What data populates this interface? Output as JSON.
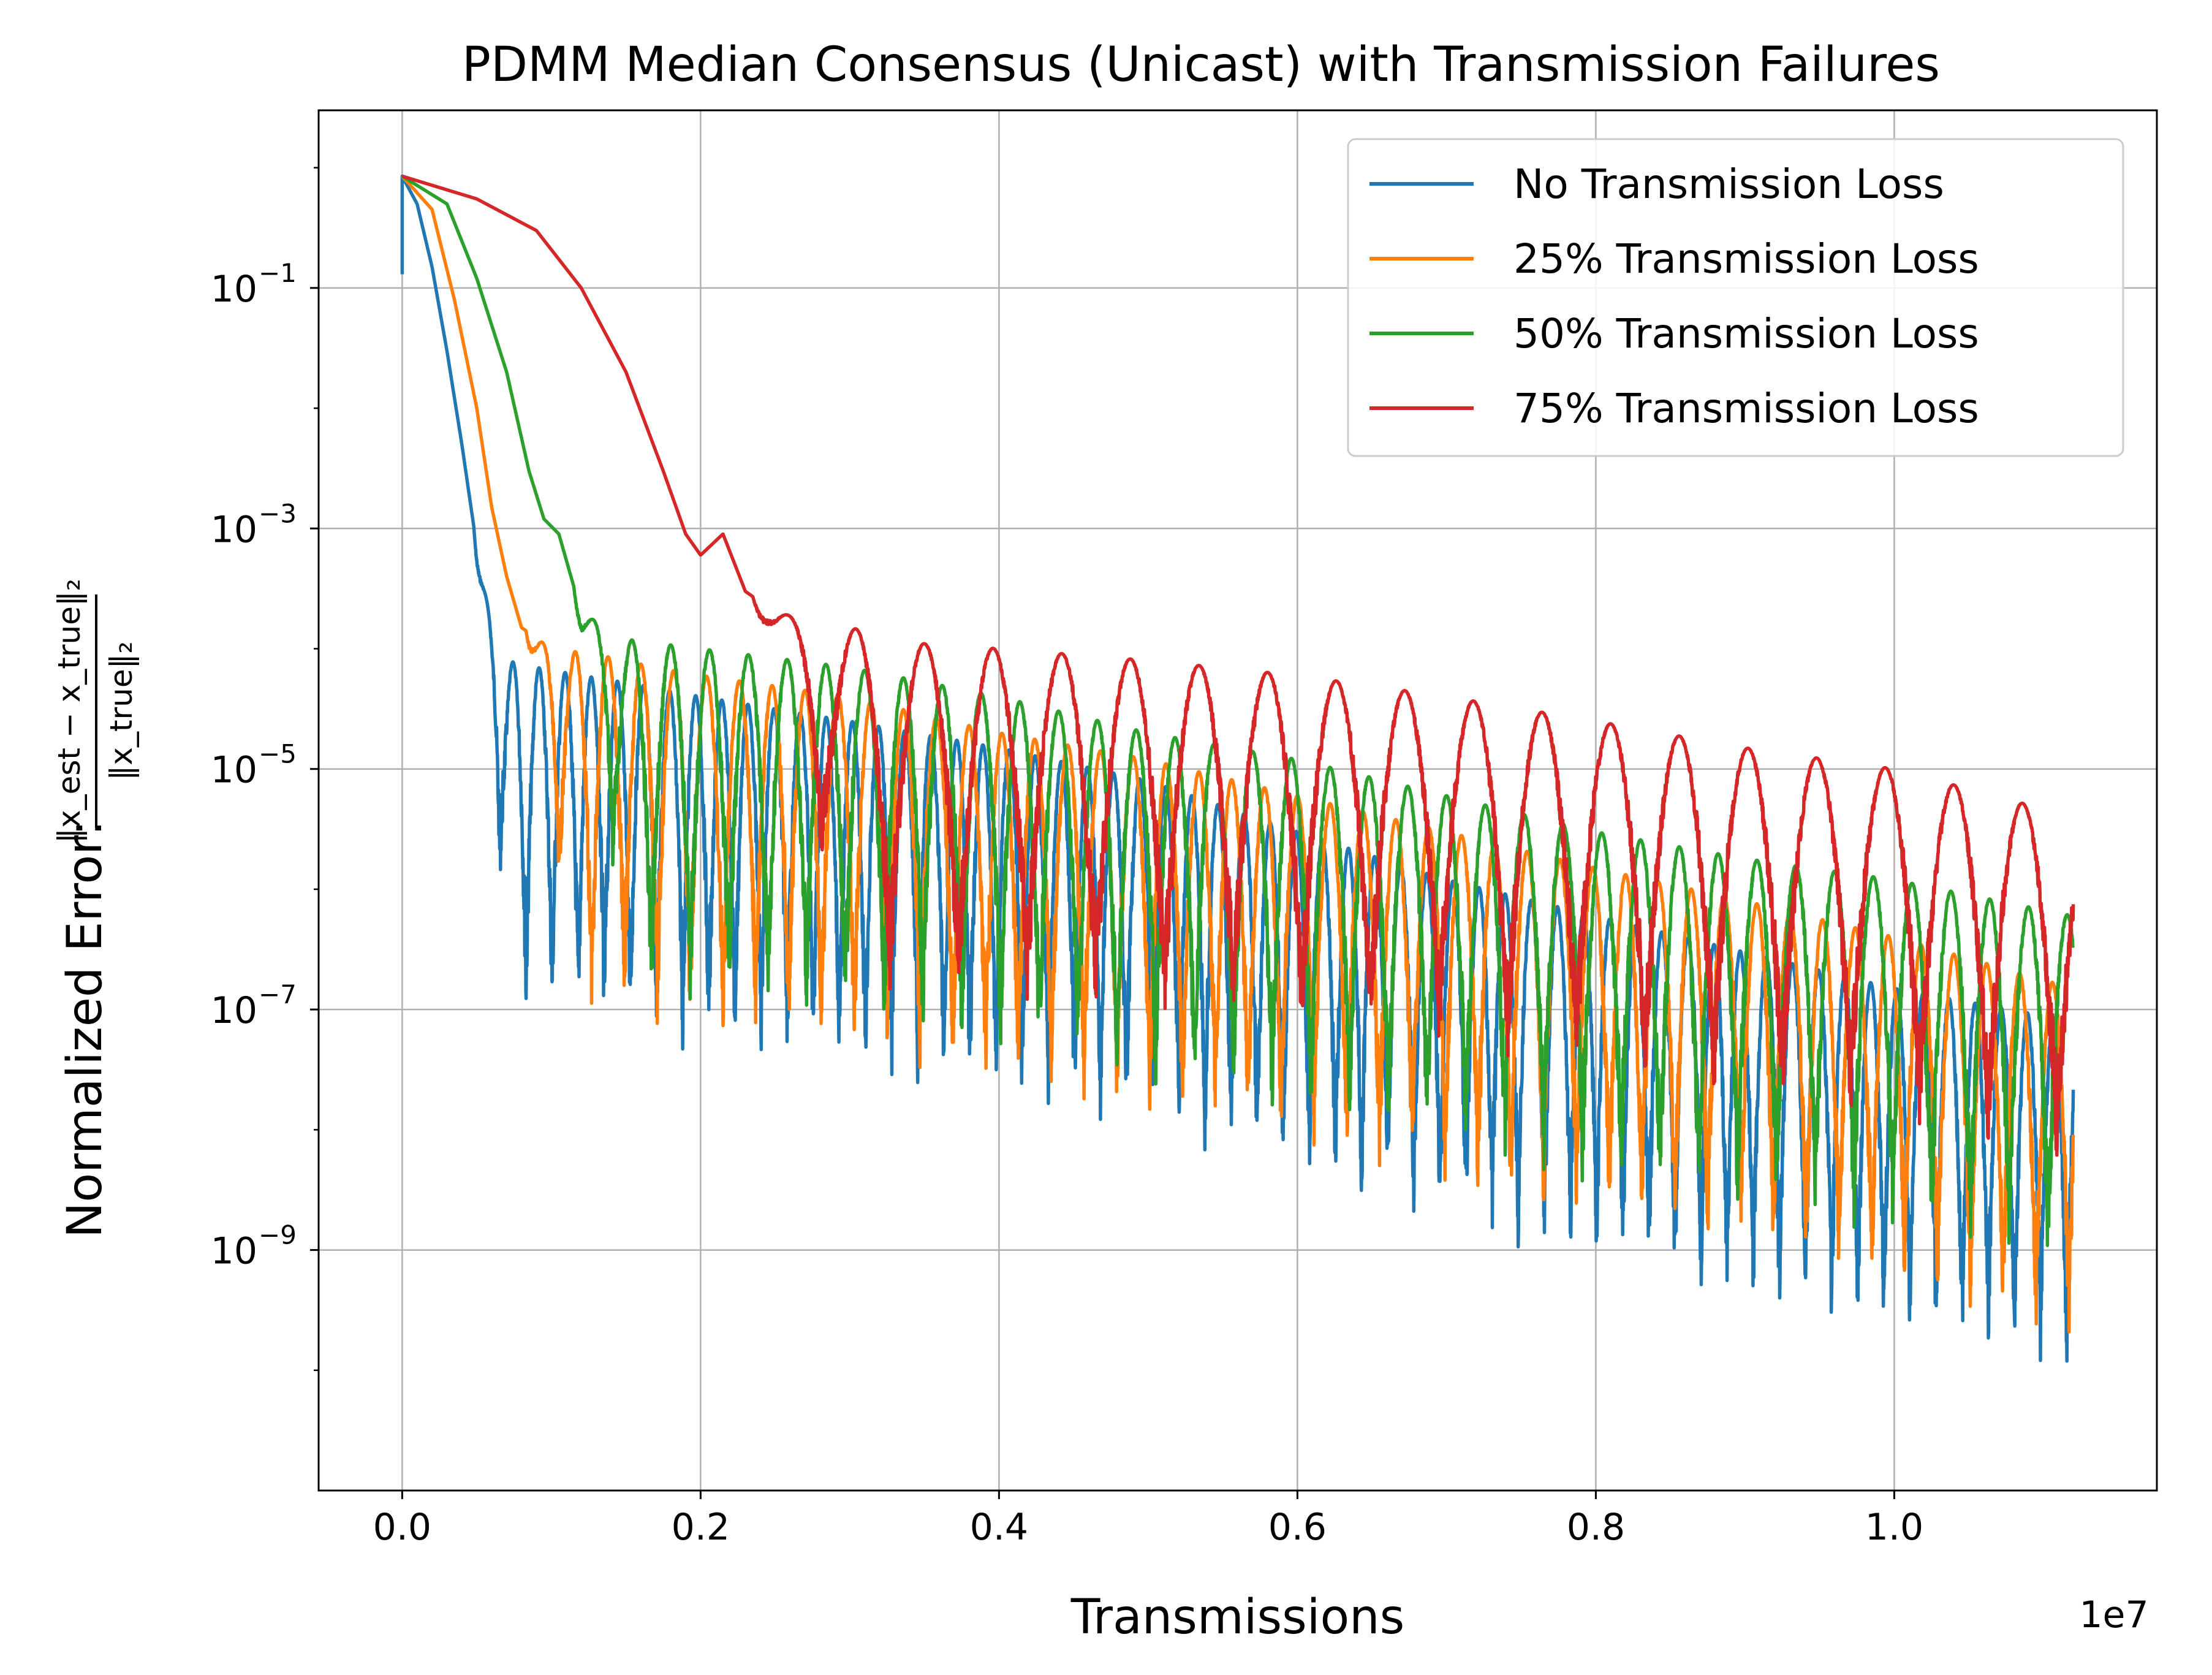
{
  "chart_data": {
    "type": "line",
    "title": "PDMM Median Consensus (Unicast) with Transmission Failures",
    "xlabel": "Transmissions",
    "x_offset_label": "1e7",
    "ylabel": {
      "prefix": "Normalized Error:",
      "numerator": "‖x_est − x_true‖₂",
      "denominator": "‖x_true‖₂"
    },
    "y_scale": "log",
    "xlim": [
      -560000,
      11760000
    ],
    "ylim": [
      1e-11,
      3.0
    ],
    "x_ticks": [
      0,
      2000000,
      4000000,
      6000000,
      8000000,
      10000000
    ],
    "x_tick_labels": [
      "0.0",
      "0.2",
      "0.4",
      "0.6",
      "0.8",
      "1.0"
    ],
    "y_ticks": [
      1e-09,
      1e-07,
      1e-05,
      0.001,
      0.1
    ],
    "y_tick_labels": [
      {
        "base": "10",
        "exp": "−9"
      },
      {
        "base": "10",
        "exp": "−7"
      },
      {
        "base": "10",
        "exp": "−5"
      },
      {
        "base": "10",
        "exp": "−3"
      },
      {
        "base": "10",
        "exp": "−1"
      }
    ],
    "grid": true,
    "legend_position": "top-right",
    "series": [
      {
        "name": "No Transmission Loss",
        "color": "#1f77b4",
        "start": 0.13,
        "peak": 0.85,
        "decay_x": [
          0,
          100000,
          200000,
          300000,
          400000,
          500000,
          600000,
          700000,
          900000,
          1200000,
          1600000,
          2000000,
          3000000,
          4000000,
          5000000,
          6000000,
          7000000,
          8000000,
          9000000,
          10000000,
          11200000
        ],
        "decay_y": [
          0.85,
          0.5,
          0.15,
          0.03,
          0.005,
          0.0007,
          0.00015,
          8e-05,
          7e-05,
          6e-05,
          5e-05,
          4e-05,
          2.5e-05,
          1.5e-05,
          8e-06,
          3e-06,
          1.2e-06,
          6e-07,
          3e-07,
          1.5e-07,
          8e-08
        ],
        "oscillation_period": 175000,
        "oscillation_start": 480000,
        "notch_min": [
          2e-07,
          3e-09
        ]
      },
      {
        "name": "25% Transmission Loss",
        "color": "#ff7f0e",
        "start": 0.85,
        "peak": 0.85,
        "decay_x": [
          0,
          200000,
          350000,
          500000,
          600000,
          700000,
          800000,
          1000000,
          1300000,
          1700000,
          2000000,
          3000000,
          4000000,
          5000000,
          6000000,
          7000000,
          8000000,
          9000000,
          10000000,
          11200000
        ],
        "decay_y": [
          0.85,
          0.45,
          0.08,
          0.01,
          0.0015,
          0.0004,
          0.00015,
          0.0001,
          9e-05,
          7e-05,
          6e-05,
          4e-05,
          2e-05,
          1.2e-05,
          6e-06,
          3e-06,
          1.5e-06,
          8e-07,
          4e-07,
          1.5e-07
        ],
        "oscillation_period": 220000,
        "oscillation_start": 830000,
        "notch_min": [
          2e-06,
          5e-09
        ]
      },
      {
        "name": "50% Transmission Loss",
        "color": "#2ca02c",
        "start": 0.85,
        "peak": 0.85,
        "decay_x": [
          0,
          300000,
          500000,
          700000,
          850000,
          950000,
          1050000,
          1200000,
          1500000,
          2000000,
          3000000,
          4000000,
          5000000,
          6000000,
          7000000,
          8000000,
          9000000,
          10000000,
          11200000
        ],
        "decay_y": [
          0.85,
          0.5,
          0.12,
          0.02,
          0.003,
          0.0012,
          0.0009,
          0.0002,
          0.00012,
          0.0001,
          7e-05,
          4e-05,
          2e-05,
          1.2e-05,
          6e-06,
          3e-06,
          1.8e-06,
          1.2e-06,
          6e-07
        ],
        "oscillation_period": 260000,
        "oscillation_start": 1150000,
        "notch_min": [
          1e-05,
          3e-08
        ]
      },
      {
        "name": "75% Transmission Loss",
        "color": "#d62728",
        "start": 0.85,
        "peak": 0.85,
        "decay_x": [
          0,
          500000,
          900000,
          1200000,
          1500000,
          1750000,
          1900000,
          2000000,
          2150000,
          2300000,
          2500000,
          3000000,
          3500000,
          4000000,
          5000000,
          6000000,
          7000000,
          8000000,
          9000000,
          10000000,
          11200000
        ],
        "decay_y": [
          0.85,
          0.55,
          0.3,
          0.1,
          0.02,
          0.003,
          0.0009,
          0.0006,
          0.0009,
          0.0003,
          0.0002,
          0.00015,
          0.00011,
          0.0001,
          8e-05,
          6e-05,
          4e-05,
          2.5e-05,
          1.5e-05,
          1e-05,
          4e-06
        ],
        "oscillation_period": 460000,
        "oscillation_start": 2350000,
        "notch_min": [
          1e-05,
          1e-07
        ]
      }
    ]
  }
}
